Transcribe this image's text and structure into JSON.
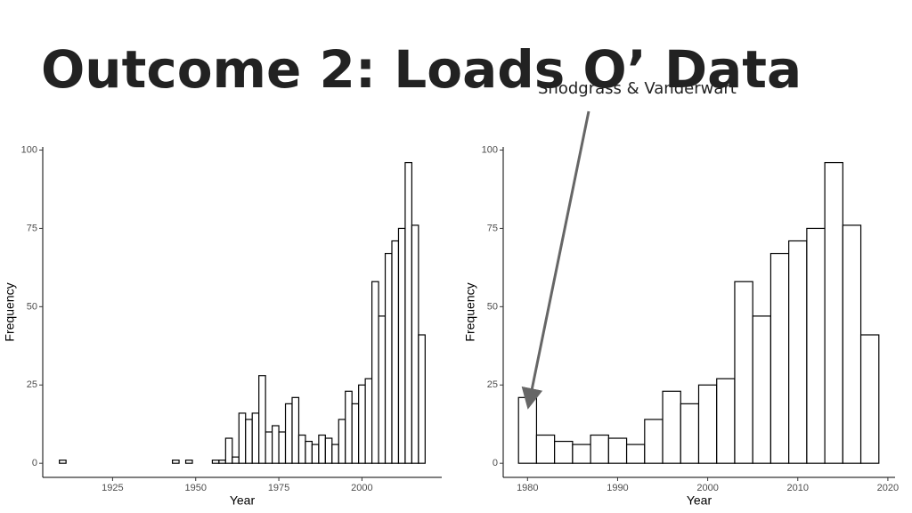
{
  "title": "Outcome 2: Loads O’ Data",
  "annotation": "Snodgrass & Vanderwart",
  "chart_data": [
    {
      "type": "histogram",
      "xlabel": "Year",
      "ylabel": "Frequency",
      "bins": [
        1909,
        1911,
        1913,
        1915,
        1917,
        1919,
        1921,
        1923,
        1925,
        1927,
        1929,
        1931,
        1933,
        1935,
        1937,
        1939,
        1941,
        1943,
        1945,
        1947,
        1949,
        1951,
        1953,
        1955,
        1957,
        1959,
        1961,
        1963,
        1965,
        1967,
        1969,
        1971,
        1973,
        1975,
        1977,
        1979,
        1981,
        1983,
        1985,
        1987,
        1989,
        1991,
        1993,
        1995,
        1997,
        1999,
        2001,
        2003,
        2005,
        2007,
        2009,
        2011,
        2013,
        2015,
        2017,
        2019
      ],
      "values": [
        1,
        0,
        0,
        0,
        0,
        0,
        0,
        0,
        0,
        0,
        0,
        0,
        0,
        0,
        0,
        0,
        0,
        1,
        0,
        1,
        0,
        0,
        0,
        1,
        1,
        8,
        2,
        16,
        14,
        16,
        28,
        10,
        12,
        10,
        19,
        21,
        9,
        7,
        6,
        9,
        8,
        6,
        14,
        23,
        19,
        25,
        27,
        58,
        47,
        67,
        71,
        75,
        96,
        76,
        41
      ],
      "color": "#ffffff",
      "edgecolor": "#000000",
      "xlim": [
        1904,
        2024
      ],
      "xticks": [
        1925,
        1950,
        1975,
        2000
      ],
      "ylim": [
        -4.5,
        101
      ],
      "yticks": [
        0,
        25,
        50,
        75,
        100
      ]
    },
    {
      "type": "histogram",
      "xlabel": "Year",
      "ylabel": "Frequency",
      "bins": [
        1979,
        1981,
        1983,
        1985,
        1987,
        1989,
        1991,
        1993,
        1995,
        1997,
        1999,
        2001,
        2003,
        2005,
        2007,
        2009,
        2011,
        2013,
        2015,
        2017,
        2019
      ],
      "values": [
        21,
        9,
        7,
        6,
        9,
        8,
        6,
        14,
        23,
        19,
        25,
        27,
        58,
        47,
        67,
        71,
        75,
        96,
        76,
        41
      ],
      "color": "#ffffff",
      "edgecolor": "#000000",
      "xlim": [
        1977.3,
        2020.8
      ],
      "xticks": [
        1980,
        1990,
        2000,
        2010,
        2020
      ],
      "ylim": [
        -4.5,
        101
      ],
      "yticks": [
        0,
        25,
        50,
        75,
        100
      ]
    }
  ]
}
